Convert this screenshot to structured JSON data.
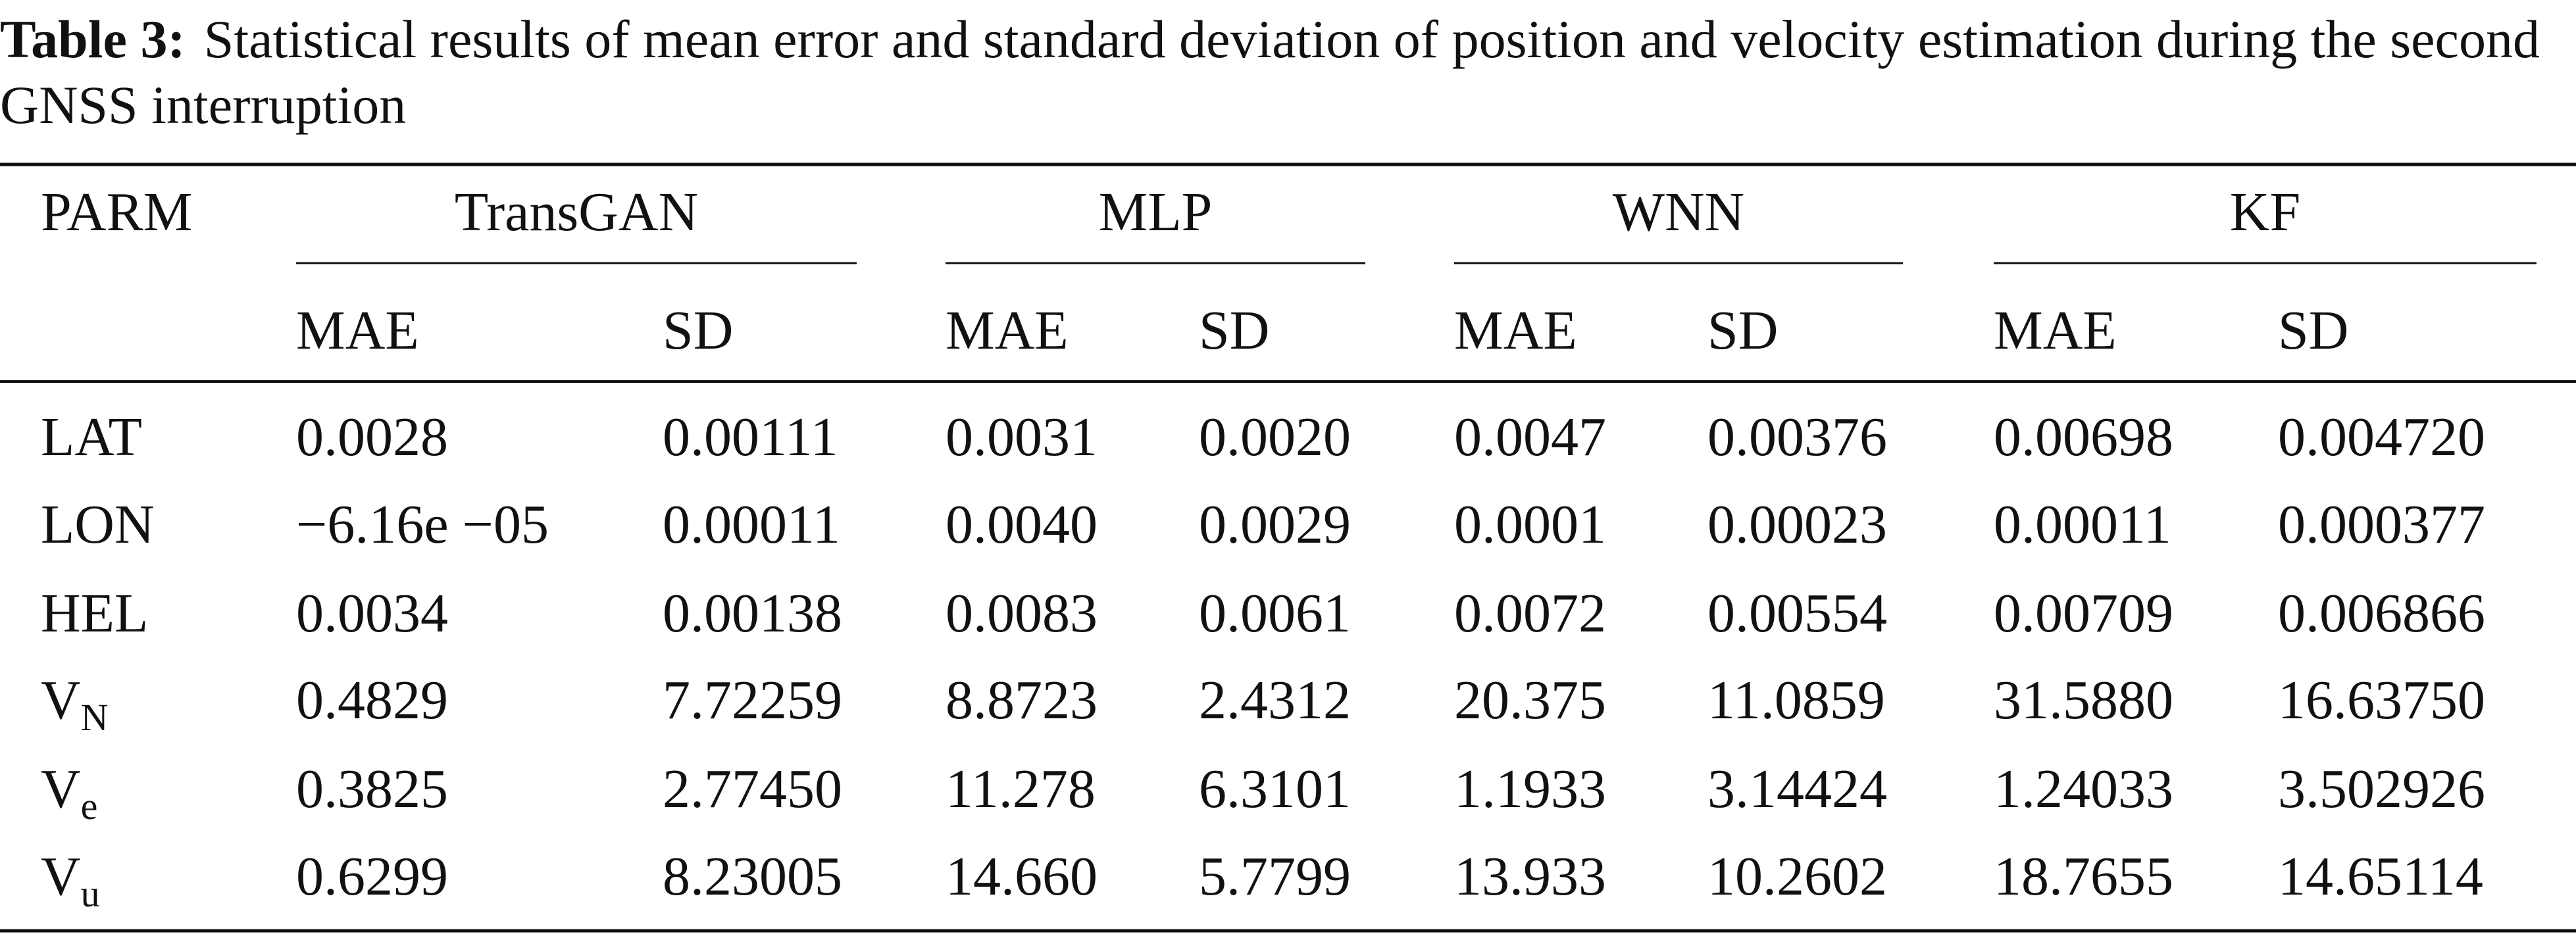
{
  "caption": {
    "label": "Table 3:",
    "text": "Statistical results of mean error and standard deviation of position and velocity estimation during the second GNSS interruption"
  },
  "table": {
    "stub_header": "PARM",
    "groups": [
      {
        "name": "TransGAN",
        "columns": [
          "MAE",
          "SD"
        ]
      },
      {
        "name": "MLP",
        "columns": [
          "MAE",
          "SD"
        ]
      },
      {
        "name": "WNN",
        "columns": [
          "MAE",
          "SD"
        ]
      },
      {
        "name": "KF",
        "columns": [
          "MAE",
          "SD"
        ]
      }
    ],
    "rows": [
      {
        "label": {
          "base": "LAT"
        },
        "cells": [
          "0.0028",
          "0.00111",
          "0.0031",
          "0.0020",
          "0.0047",
          "0.00376",
          "0.00698",
          "0.004720"
        ]
      },
      {
        "label": {
          "base": "LON"
        },
        "cells": [
          "−6.16e −05",
          "0.00011",
          "0.0040",
          "0.0029",
          "0.0001",
          "0.00023",
          "0.00011",
          "0.000377"
        ]
      },
      {
        "label": {
          "base": "HEL"
        },
        "cells": [
          "0.0034",
          "0.00138",
          "0.0083",
          "0.0061",
          "0.0072",
          "0.00554",
          "0.00709",
          "0.006866"
        ]
      },
      {
        "label": {
          "base": "V",
          "sub": "N"
        },
        "cells": [
          "0.4829",
          "7.72259",
          "8.8723",
          "2.4312",
          "20.375",
          "11.0859",
          "31.5880",
          "16.63750"
        ]
      },
      {
        "label": {
          "base": "V",
          "sub": "e"
        },
        "cells": [
          "0.3825",
          "2.77450",
          "11.278",
          "6.3101",
          "1.1933",
          "3.14424",
          "1.24033",
          "3.502926"
        ]
      },
      {
        "label": {
          "base": "V",
          "sub": "u"
        },
        "cells": [
          "0.6299",
          "8.23005",
          "14.660",
          "5.7799",
          "13.933",
          "10.2602",
          "18.7655",
          "14.65114"
        ]
      }
    ]
  }
}
